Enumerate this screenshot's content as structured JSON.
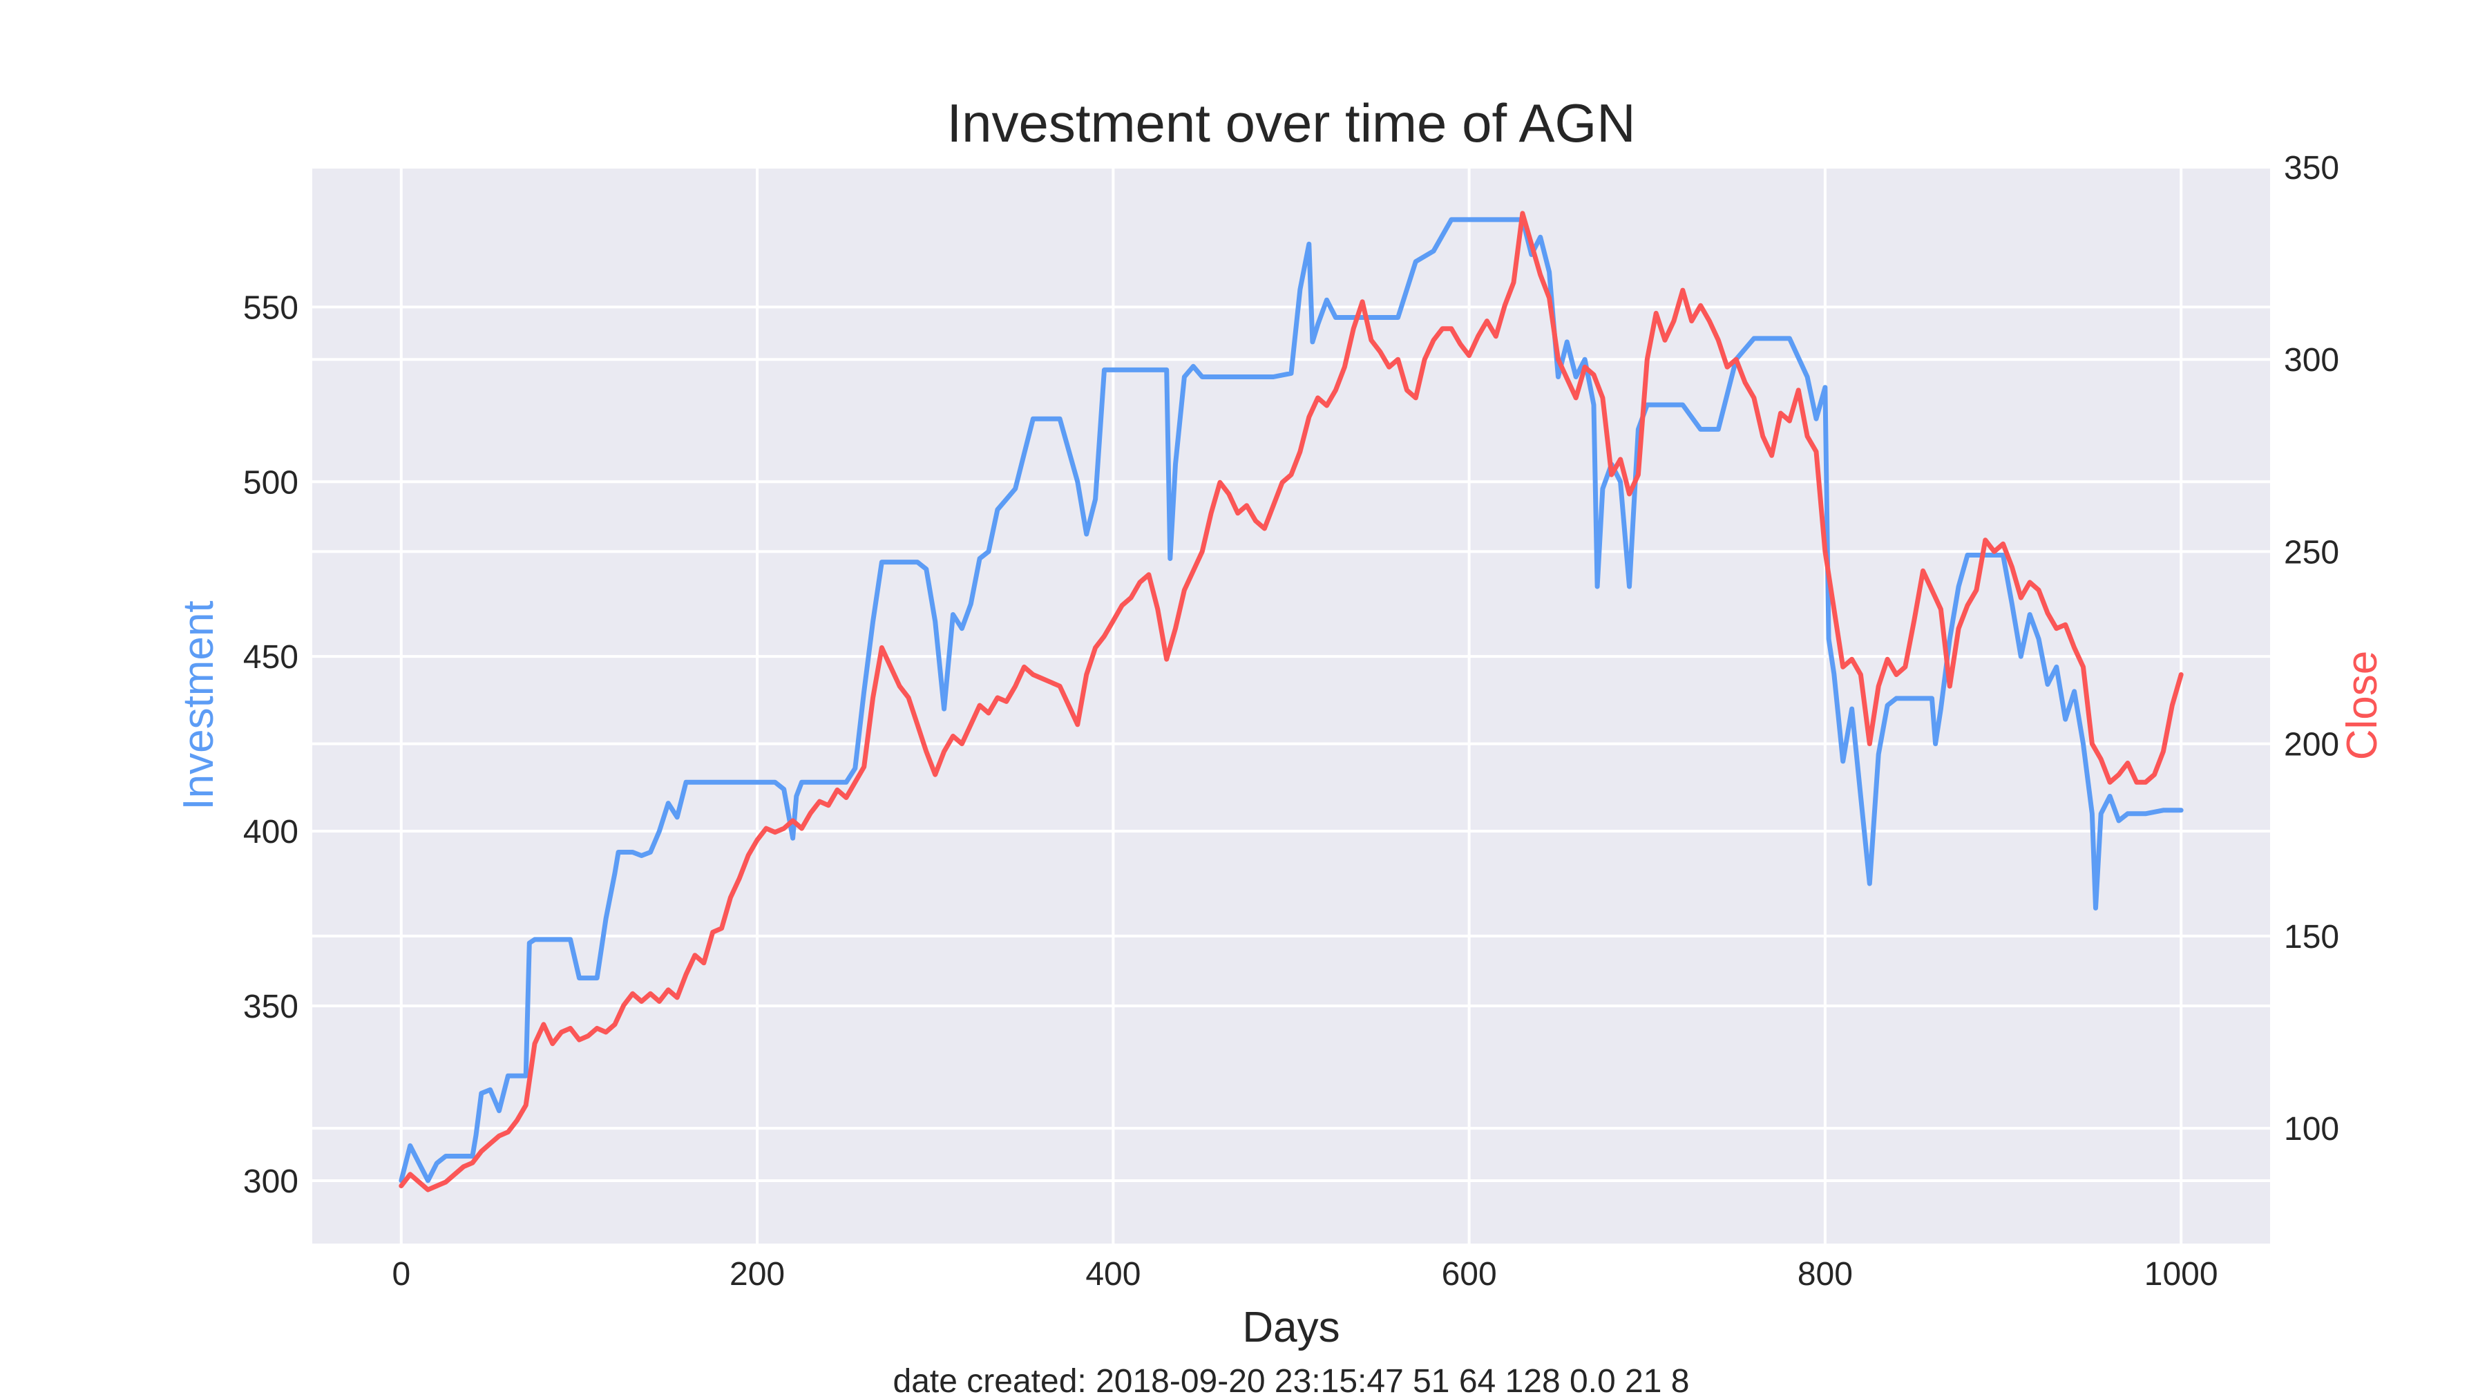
{
  "chart_data": {
    "type": "line",
    "title": "Investment over time of AGN",
    "xlabel": "Days",
    "y1label": "Investment",
    "y2label": "Close",
    "caption": "date created: 2018-09-20 23:15:47 51 64 128 0.0 21 8",
    "xlim": [
      -50,
      1050
    ],
    "y1lim": [
      282,
      590
    ],
    "y2lim": [
      70,
      350
    ],
    "x_ticks": [
      0,
      200,
      400,
      600,
      800,
      1000
    ],
    "y1_ticks": [
      300,
      350,
      400,
      450,
      500,
      550
    ],
    "y2_ticks": [
      100,
      150,
      200,
      250,
      300,
      350
    ],
    "grid": true,
    "colors": {
      "investment": "#5c9cf5",
      "close": "#fb5656",
      "background": "#eaeaf2",
      "grid": "#ffffff"
    },
    "series": [
      {
        "axis": "left",
        "color": "#5c9cf5",
        "x": [
          0,
          5,
          10,
          15,
          20,
          25,
          30,
          40,
          42,
          45,
          50,
          55,
          60,
          65,
          70,
          72,
          75,
          80,
          90,
          95,
          100,
          102,
          110,
          115,
          120,
          122,
          125,
          130,
          135,
          140,
          145,
          150,
          155,
          160,
          170,
          180,
          190,
          200,
          210,
          215,
          220,
          222,
          225,
          230,
          235,
          240,
          245,
          250,
          255,
          260,
          265,
          270,
          275,
          280,
          290,
          295,
          300,
          305,
          310,
          315,
          320,
          325,
          330,
          335,
          340,
          345,
          350,
          355,
          360,
          370,
          380,
          385,
          390,
          395,
          400,
          420,
          430,
          432,
          435,
          440,
          445,
          450,
          460,
          470,
          480,
          490,
          500,
          505,
          510,
          512,
          515,
          520,
          525,
          530,
          540,
          550,
          560,
          570,
          580,
          590,
          600,
          610,
          620,
          630,
          635,
          640,
          645,
          650,
          655,
          660,
          665,
          670,
          672,
          675,
          680,
          685,
          690,
          695,
          700,
          710,
          720,
          730,
          740,
          750,
          760,
          765,
          770,
          780,
          790,
          795,
          800,
          802,
          805,
          810,
          815,
          820,
          825,
          830,
          835,
          840,
          850,
          860,
          862,
          865,
          870,
          875,
          880,
          890,
          900,
          905,
          910,
          915,
          920,
          925,
          930,
          935,
          940,
          945,
          950,
          952,
          955,
          960,
          965,
          970,
          975,
          980,
          990,
          1000
        ],
        "values": [
          300,
          310,
          305,
          300,
          305,
          307,
          307,
          307,
          313,
          325,
          326,
          320,
          330,
          330,
          330,
          368,
          369,
          369,
          369,
          369,
          358,
          358,
          358,
          375,
          388,
          394,
          394,
          394,
          393,
          394,
          400,
          408,
          404,
          414,
          414,
          414,
          414,
          414,
          414,
          412,
          398,
          410,
          414,
          414,
          414,
          414,
          414,
          414,
          418,
          440,
          460,
          477,
          477,
          477,
          477,
          475,
          460,
          435,
          462,
          458,
          465,
          478,
          480,
          492,
          495,
          498,
          508,
          518,
          518,
          518,
          500,
          485,
          495,
          532,
          532,
          532,
          532,
          478,
          505,
          530,
          533,
          530,
          530,
          530,
          530,
          530,
          531,
          555,
          568,
          540,
          545,
          552,
          547,
          547,
          547,
          547,
          547,
          563,
          566,
          575,
          575,
          575,
          575,
          575,
          565,
          570,
          560,
          530,
          540,
          530,
          535,
          522,
          470,
          498,
          505,
          500,
          470,
          515,
          522,
          522,
          522,
          515,
          515,
          535,
          541,
          541,
          541,
          541,
          530,
          518,
          527,
          455,
          445,
          420,
          435,
          410,
          385,
          422,
          436,
          438,
          438,
          438,
          425,
          435,
          455,
          470,
          479,
          479,
          479,
          465,
          450,
          462,
          455,
          442,
          447,
          432,
          440,
          425,
          405,
          378,
          405,
          410,
          403,
          405,
          405,
          405,
          406,
          406
        ]
      },
      {
        "axis": "right",
        "color": "#fb5656",
        "x": [
          0,
          5,
          10,
          15,
          20,
          25,
          30,
          35,
          40,
          45,
          50,
          55,
          60,
          65,
          70,
          75,
          80,
          85,
          90,
          95,
          100,
          105,
          110,
          115,
          120,
          125,
          130,
          135,
          140,
          145,
          150,
          155,
          160,
          165,
          170,
          175,
          180,
          185,
          190,
          195,
          200,
          205,
          210,
          215,
          220,
          225,
          230,
          235,
          240,
          245,
          250,
          255,
          260,
          265,
          270,
          275,
          280,
          285,
          290,
          295,
          300,
          305,
          310,
          315,
          320,
          325,
          330,
          335,
          340,
          345,
          350,
          355,
          360,
          365,
          370,
          375,
          380,
          385,
          390,
          395,
          400,
          405,
          410,
          415,
          420,
          425,
          430,
          435,
          440,
          445,
          450,
          455,
          460,
          465,
          470,
          475,
          480,
          485,
          490,
          495,
          500,
          505,
          510,
          515,
          520,
          525,
          530,
          535,
          540,
          545,
          550,
          555,
          560,
          565,
          570,
          575,
          580,
          585,
          590,
          595,
          600,
          605,
          610,
          615,
          620,
          625,
          630,
          635,
          640,
          645,
          650,
          655,
          660,
          665,
          670,
          675,
          680,
          685,
          690,
          695,
          700,
          705,
          710,
          715,
          720,
          725,
          730,
          735,
          740,
          745,
          750,
          755,
          760,
          765,
          770,
          775,
          780,
          785,
          790,
          795,
          800,
          805,
          810,
          815,
          820,
          825,
          830,
          835,
          840,
          845,
          850,
          855,
          860,
          865,
          870,
          875,
          880,
          885,
          890,
          895,
          900,
          905,
          910,
          915,
          920,
          925,
          930,
          935,
          940,
          945,
          950,
          955,
          960,
          965,
          970,
          975,
          980,
          985,
          990,
          995,
          1000
        ],
        "values": [
          85,
          88,
          86,
          84,
          85,
          86,
          88,
          90,
          91,
          94,
          96,
          98,
          99,
          102,
          106,
          122,
          127,
          122,
          125,
          126,
          123,
          124,
          126,
          125,
          127,
          132,
          135,
          133,
          135,
          133,
          136,
          134,
          140,
          145,
          143,
          151,
          152,
          160,
          165,
          171,
          175,
          178,
          177,
          178,
          180,
          178,
          182,
          185,
          184,
          188,
          186,
          190,
          194,
          212,
          225,
          220,
          215,
          212,
          205,
          198,
          192,
          198,
          202,
          200,
          205,
          210,
          208,
          212,
          211,
          215,
          220,
          218,
          217,
          216,
          215,
          210,
          205,
          218,
          225,
          228,
          232,
          236,
          238,
          242,
          244,
          235,
          222,
          230,
          240,
          245,
          250,
          260,
          268,
          265,
          260,
          262,
          258,
          256,
          262,
          268,
          270,
          276,
          285,
          290,
          288,
          292,
          298,
          308,
          315,
          305,
          302,
          298,
          300,
          292,
          290,
          300,
          305,
          308,
          308,
          304,
          301,
          306,
          310,
          306,
          314,
          320,
          338,
          330,
          322,
          316,
          300,
          295,
          290,
          298,
          296,
          290,
          270,
          274,
          265,
          270,
          300,
          312,
          305,
          310,
          318,
          310,
          314,
          310,
          305,
          298,
          300,
          294,
          290,
          280,
          275,
          286,
          284,
          292,
          280,
          276,
          250,
          235,
          220,
          222,
          218,
          200,
          215,
          222,
          218,
          220,
          232,
          245,
          240,
          235,
          215,
          230,
          236,
          240,
          253,
          250,
          252,
          246,
          238,
          242,
          240,
          234,
          230,
          231,
          225,
          220,
          200,
          196,
          190,
          192,
          195,
          190,
          190,
          192,
          198,
          210,
          218
        ]
      }
    ]
  }
}
